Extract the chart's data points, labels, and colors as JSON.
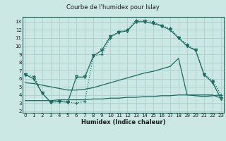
{
  "title": "Courbe de l'humidex pour Islay",
  "xlabel": "Humidex (Indice chaleur)",
  "x_ticks": [
    0,
    1,
    2,
    3,
    4,
    5,
    6,
    7,
    8,
    9,
    10,
    11,
    12,
    13,
    14,
    15,
    16,
    17,
    18,
    19,
    20,
    21,
    22,
    23
  ],
  "y_ticks": [
    2,
    3,
    4,
    5,
    6,
    7,
    8,
    9,
    10,
    11,
    12,
    13
  ],
  "xlim": [
    -0.3,
    23.3
  ],
  "ylim": [
    1.8,
    13.6
  ],
  "bg_color": "#cce8e5",
  "grid_color": "#aacfcc",
  "line_color": "#1a6b5e",
  "s1_x": [
    0,
    1,
    2,
    3,
    4,
    5,
    6,
    7,
    8,
    9,
    10,
    11,
    12,
    13,
    14,
    15,
    16,
    17,
    18,
    19,
    20,
    21,
    22,
    23
  ],
  "s1_y": [
    6.5,
    6.3,
    4.2,
    3.1,
    3.2,
    3.1,
    3.0,
    3.2,
    8.8,
    9.0,
    11.0,
    11.8,
    12.0,
    13.2,
    13.2,
    13.0,
    12.5,
    12.2,
    11.1,
    10.2,
    9.5,
    6.5,
    5.8,
    4.0
  ],
  "s2_x": [
    0,
    1,
    2,
    3,
    4,
    5,
    6,
    7,
    8,
    9,
    10,
    11,
    12,
    13,
    14,
    15,
    16,
    17,
    18,
    19,
    20,
    21,
    22,
    23
  ],
  "s2_y": [
    6.5,
    6.0,
    4.2,
    3.1,
    3.2,
    3.1,
    6.2,
    6.2,
    8.8,
    9.5,
    11.2,
    11.7,
    11.9,
    13.0,
    13.0,
    12.8,
    12.5,
    12.0,
    11.0,
    10.0,
    9.5,
    6.5,
    5.5,
    3.5
  ],
  "s3_x": [
    0,
    1,
    2,
    3,
    4,
    5,
    6,
    7,
    8,
    9,
    10,
    11,
    12,
    13,
    14,
    15,
    16,
    17,
    18,
    19,
    20,
    21,
    22,
    23
  ],
  "s3_y": [
    5.5,
    5.4,
    5.2,
    5.0,
    4.8,
    4.6,
    4.6,
    4.7,
    4.9,
    5.2,
    5.5,
    5.8,
    6.1,
    6.4,
    6.7,
    6.9,
    7.2,
    7.5,
    8.5,
    4.0,
    3.9,
    3.8,
    3.9,
    4.0
  ],
  "s4_x": [
    0,
    1,
    2,
    3,
    4,
    5,
    6,
    7,
    8,
    9,
    10,
    11,
    12,
    13,
    14,
    15,
    16,
    17,
    18,
    19,
    20,
    21,
    22,
    23
  ],
  "s4_y": [
    3.3,
    3.3,
    3.3,
    3.3,
    3.4,
    3.4,
    3.4,
    3.4,
    3.5,
    3.5,
    3.6,
    3.6,
    3.7,
    3.7,
    3.8,
    3.8,
    3.9,
    3.9,
    4.0,
    4.0,
    4.0,
    4.0,
    4.0,
    3.6
  ]
}
